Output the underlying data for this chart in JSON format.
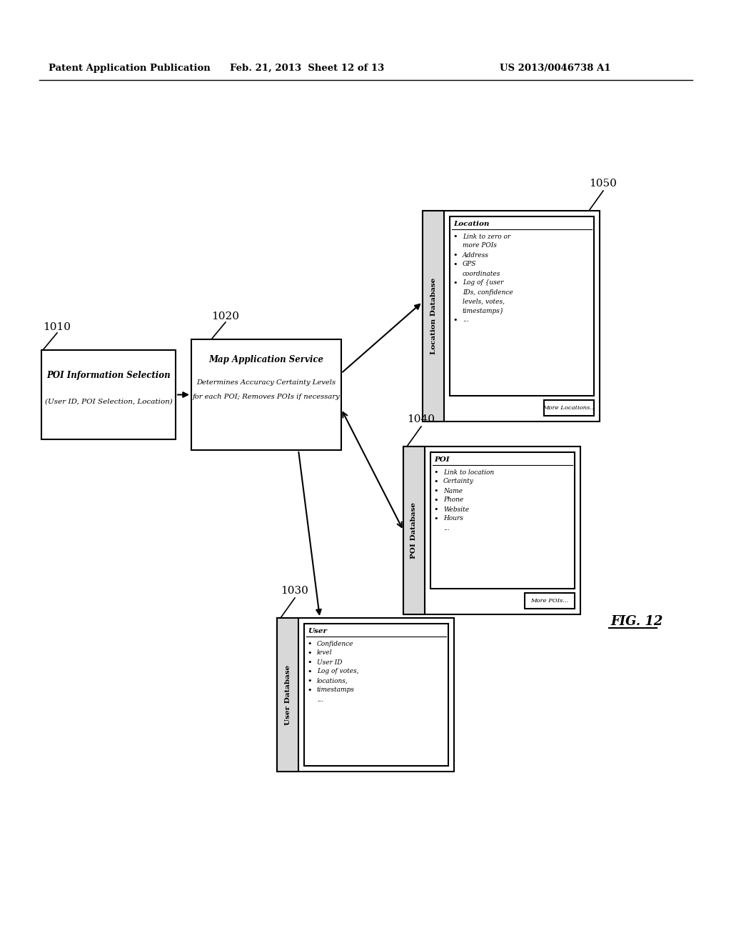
{
  "title_left": "Patent Application Publication",
  "title_mid": "Feb. 21, 2013  Sheet 12 of 13",
  "title_right": "US 2013/0046738 A1",
  "fig_label": "FIG. 12",
  "box1010_label": "1010",
  "box1010_title": "POI Information Selection",
  "box1010_sub": "(User ID, POI Selection, Location)",
  "box1020_label": "1020",
  "box1020_title": "Map Application Service",
  "box1020_line2": "Determines Accuracy Certainty Levels",
  "box1020_line3": "for each POI; Removes POIs if necessary",
  "box1030_label": "1030",
  "box1030_db_title": "User Database",
  "box1030_header": "User",
  "box1030_items": [
    "Confidence",
    "level",
    "User ID",
    "Log of votes,",
    "locations,",
    "timestamps",
    "..."
  ],
  "box1030_bullets": [
    0,
    1,
    2,
    3,
    4,
    5
  ],
  "box1040_label": "1040",
  "box1040_db_title": "POI Database",
  "box1040_header": "POI",
  "box1040_items": [
    "Link to location",
    "Certainty",
    "Name",
    "Phone",
    "Website",
    "Hours",
    "..."
  ],
  "box1040_bullets": [
    0,
    1,
    2,
    3,
    4,
    5
  ],
  "box1040_more": "More POIs...",
  "box1050_label": "1050",
  "box1050_db_title": "Location Database",
  "box1050_header": "Location",
  "box1050_items": [
    "Link to zero or",
    "more POIs",
    "Address",
    "GPS",
    "coordinates",
    "Log of {user",
    "IDs, confidence",
    "levels, votes,",
    "timestamps}",
    "..."
  ],
  "box1050_bullets": [
    0,
    2,
    3,
    5,
    9
  ],
  "box1050_more": "More Locations...",
  "bg_color": "#ffffff",
  "box_color": "#ffffff",
  "border_color": "#000000",
  "text_color": "#000000"
}
